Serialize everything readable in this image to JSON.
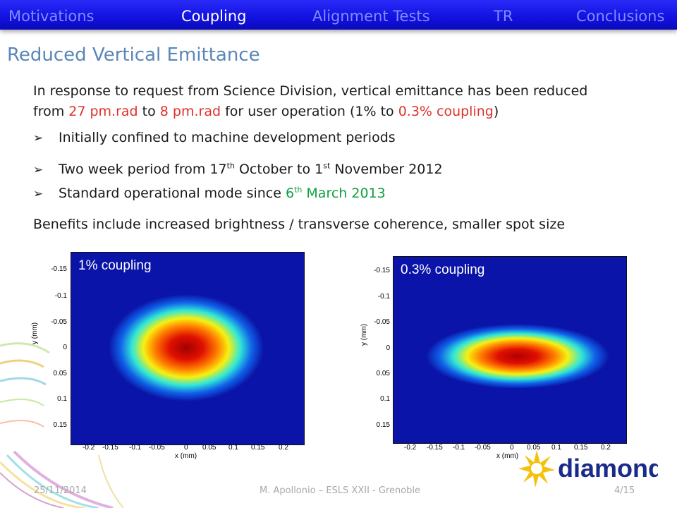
{
  "nav": {
    "items": [
      "Motivations",
      "Coupling",
      "Alignment Tests",
      "TR",
      "Conclusions"
    ],
    "active": "Coupling"
  },
  "title": "Reduced Vertical Emittance",
  "intro": {
    "line1": "In response to request from Science Division, vertical emittance has been reduced",
    "line2_a": "from ",
    "line2_b": "27 pm.rad",
    "line2_c": " to ",
    "line2_d": "8 pm.rad",
    "line2_e": " for user operation (1% to ",
    "line2_f": "0.3% coupling",
    "line2_g": ")"
  },
  "bullets": {
    "b1": "Initially confined to machine development periods",
    "b2_a": "Two week period from 17",
    "b2_sup1": "th",
    "b2_b": " October to 1",
    "b2_sup2": "st",
    "b2_c": " November 2012",
    "b3_a": "Standard operational mode since ",
    "b3_b": "6",
    "b3_sup": "th",
    "b3_c": " March 2013"
  },
  "benefits": "Benefits include increased brightness / transverse coherence, smaller spot size",
  "plots": [
    {
      "label": "1% coupling"
    },
    {
      "label": "0.3% coupling"
    }
  ],
  "axes": {
    "xlabel": "x (mm)",
    "ylabel": "y (mm)",
    "yticks": [
      "-0.15",
      "-0.1",
      "-0.05",
      "0",
      "0.05",
      "0.1",
      "0.15"
    ],
    "xticks": [
      "-0.2",
      "-0.15",
      "-0.1",
      "-0.05",
      "0",
      "0.05",
      "0.1",
      "0.15",
      "0.2"
    ]
  },
  "footer": {
    "date": "25/11/2014",
    "author": "M. Apollonio – ESLS XXII - Grenoble",
    "page": "4/15"
  },
  "logo": {
    "text": "diamond"
  },
  "colors": {
    "nav_bg": "#1a1ae8",
    "title": "#5a86b8",
    "highlight_red": "#e0302a",
    "highlight_green": "#10a040",
    "plot_bg": "#0a14a8"
  }
}
